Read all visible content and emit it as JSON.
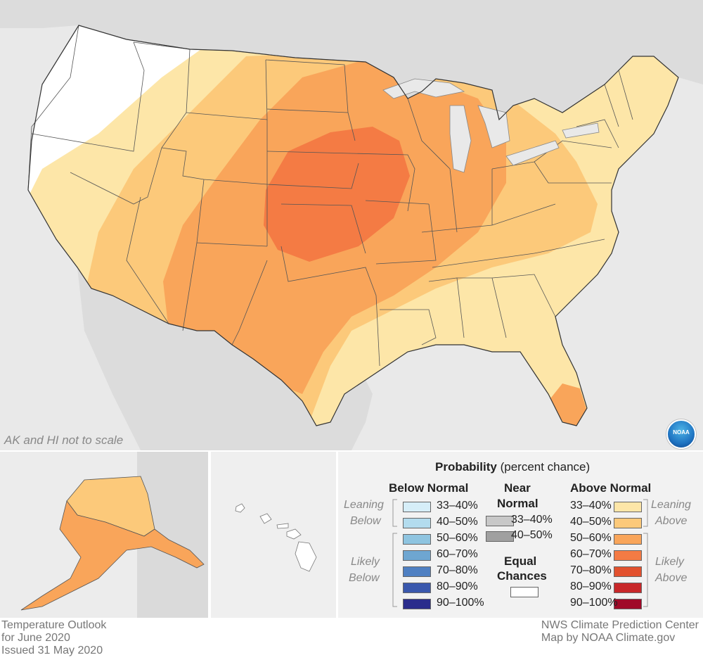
{
  "map": {
    "note": "AK and HI not to scale",
    "logo_text": "NOAA",
    "colors": {
      "background": "#e9e9e9",
      "land_other": "#d9d9d9",
      "equal_chances": "#ffffff",
      "above_33_40": "#fde6a8",
      "above_40_50": "#fcc97a",
      "above_50_60": "#f9a55a",
      "above_60_70": "#f47b44",
      "state_border": "#555555"
    }
  },
  "legend": {
    "title": "Probability",
    "title_sub": "(percent chance)",
    "below": {
      "heading": "Below Normal",
      "leaning_label": [
        "Leaning",
        "Below"
      ],
      "likely_label": [
        "Likely",
        "Below"
      ],
      "items": [
        {
          "label": "33–40%",
          "color": "#d6eef8"
        },
        {
          "label": "40–50%",
          "color": "#b3dcee"
        },
        {
          "label": "50–60%",
          "color": "#8ec4e0"
        },
        {
          "label": "60–70%",
          "color": "#6ea6d1"
        },
        {
          "label": "70–80%",
          "color": "#4f80c2"
        },
        {
          "label": "80–90%",
          "color": "#3a58ad"
        },
        {
          "label": "90–100%",
          "color": "#2a2c8c"
        }
      ]
    },
    "near": {
      "heading": [
        "Near",
        "Normal"
      ],
      "items": [
        {
          "label": "33–40%",
          "color": "#c8c8c8"
        },
        {
          "label": "40–50%",
          "color": "#a0a0a0"
        }
      ]
    },
    "equal": {
      "heading": [
        "Equal",
        "Chances"
      ],
      "color": "#ffffff"
    },
    "above": {
      "heading": "Above Normal",
      "leaning_label": [
        "Leaning",
        "Above"
      ],
      "likely_label": [
        "Likely",
        "Above"
      ],
      "items": [
        {
          "label": "33–40%",
          "color": "#fde6a8"
        },
        {
          "label": "40–50%",
          "color": "#fcc97a"
        },
        {
          "label": "50–60%",
          "color": "#f9a55a"
        },
        {
          "label": "60–70%",
          "color": "#f47b44"
        },
        {
          "label": "70–80%",
          "color": "#e2512e"
        },
        {
          "label": "80–90%",
          "color": "#c8282a"
        },
        {
          "label": "90–100%",
          "color": "#a00a28"
        }
      ]
    }
  },
  "footer": {
    "left": [
      "Temperature Outlook",
      "for June 2020",
      "Issued 31 May 2020"
    ],
    "right": [
      "NWS Climate Prediction Center",
      "Map by NOAA Climate.gov"
    ]
  }
}
